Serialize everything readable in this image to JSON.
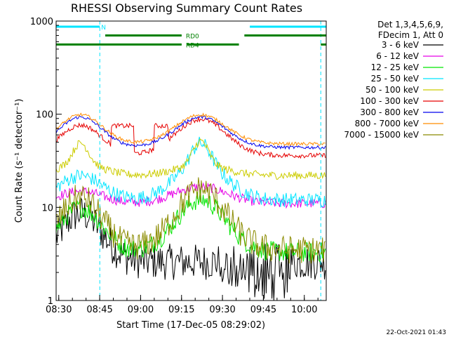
{
  "chart_data": {
    "type": "line",
    "title": "RHESSI Observing Summary Count Rates",
    "xlabel": "Start Time (17-Dec-05 08:29:02)",
    "ylabel": "Count Rate (s⁻¹ detector⁻¹)",
    "y_scale": "log",
    "ylim": [
      1,
      1000
    ],
    "xlim_minutes": [
      0,
      99
    ],
    "x_ticks": [
      "08:30",
      "08:45",
      "09:00",
      "09:15",
      "09:30",
      "09:45",
      "10:00"
    ],
    "y_ticks": [
      "1",
      "10",
      "100",
      "1000"
    ],
    "legend_header": [
      "Det 1,3,4,5,6,9,",
      "FDecim 1, Att 0"
    ],
    "legend_position": "right",
    "timestamp": "22-Oct-2021 01:43",
    "flags": [
      {
        "label": "N",
        "color": "#00e5ff",
        "level": 870,
        "segments": [
          [
            0,
            16
          ],
          [
            71,
            99
          ]
        ]
      },
      {
        "label": "RD0",
        "color": "#008000",
        "level": 700,
        "segments": [
          [
            18,
            46
          ],
          [
            69,
            99
          ]
        ]
      },
      {
        "label": "RD4",
        "color": "#008000",
        "level": 560,
        "segments": [
          [
            0,
            46
          ],
          [
            48,
            67
          ],
          [
            97,
            99
          ]
        ]
      }
    ],
    "vlines": [
      {
        "x": 16,
        "color": "#00e5ff",
        "style": "dashed"
      },
      {
        "x": 97,
        "color": "#00e5ff",
        "style": "dashed"
      }
    ],
    "series": [
      {
        "name": "3 - 6 keV",
        "color": "#000000"
      },
      {
        "name": "6 - 12 keV",
        "color": "#e600e6"
      },
      {
        "name": "12 - 25 keV",
        "color": "#00e600"
      },
      {
        "name": "25 - 50 keV",
        "color": "#00e5ff"
      },
      {
        "name": "50 - 100 keV",
        "color": "#cccc00"
      },
      {
        "name": "100 - 300 keV",
        "color": "#e60000"
      },
      {
        "name": "300 - 800 keV",
        "color": "#0000ee"
      },
      {
        "name": "800 - 7000 keV",
        "color": "#ff8c00"
      },
      {
        "name": "7000 - 15000 keV",
        "color": "#8b8b00"
      }
    ]
  }
}
